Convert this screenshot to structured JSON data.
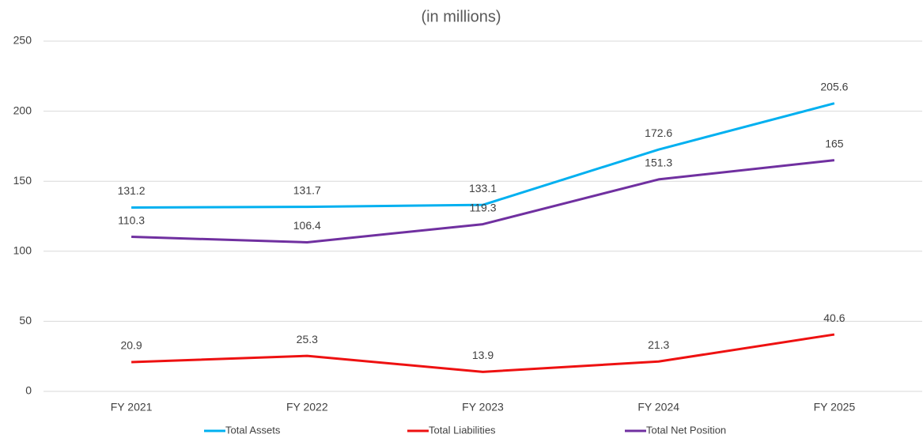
{
  "chart_data": {
    "type": "line",
    "title": "(in millions)",
    "categories": [
      "FY 2021",
      "FY 2022",
      "FY 2023",
      "FY 2024",
      "FY 2025"
    ],
    "series": [
      {
        "name": "Total Assets",
        "color": "#00b0f0",
        "values": [
          131.2,
          131.7,
          133.1,
          172.6,
          205.6
        ]
      },
      {
        "name": "Total Liabilities",
        "color": "#ee1111",
        "values": [
          20.9,
          25.3,
          13.9,
          21.3,
          40.6
        ]
      },
      {
        "name": "Total Net Position",
        "color": "#7030a0",
        "values": [
          110.3,
          106.4,
          119.3,
          151.3,
          165
        ]
      }
    ],
    "ylim": [
      0,
      250
    ],
    "yticks": [
      0,
      50,
      100,
      150,
      200,
      250
    ],
    "grid": true,
    "legend": "bottom"
  }
}
